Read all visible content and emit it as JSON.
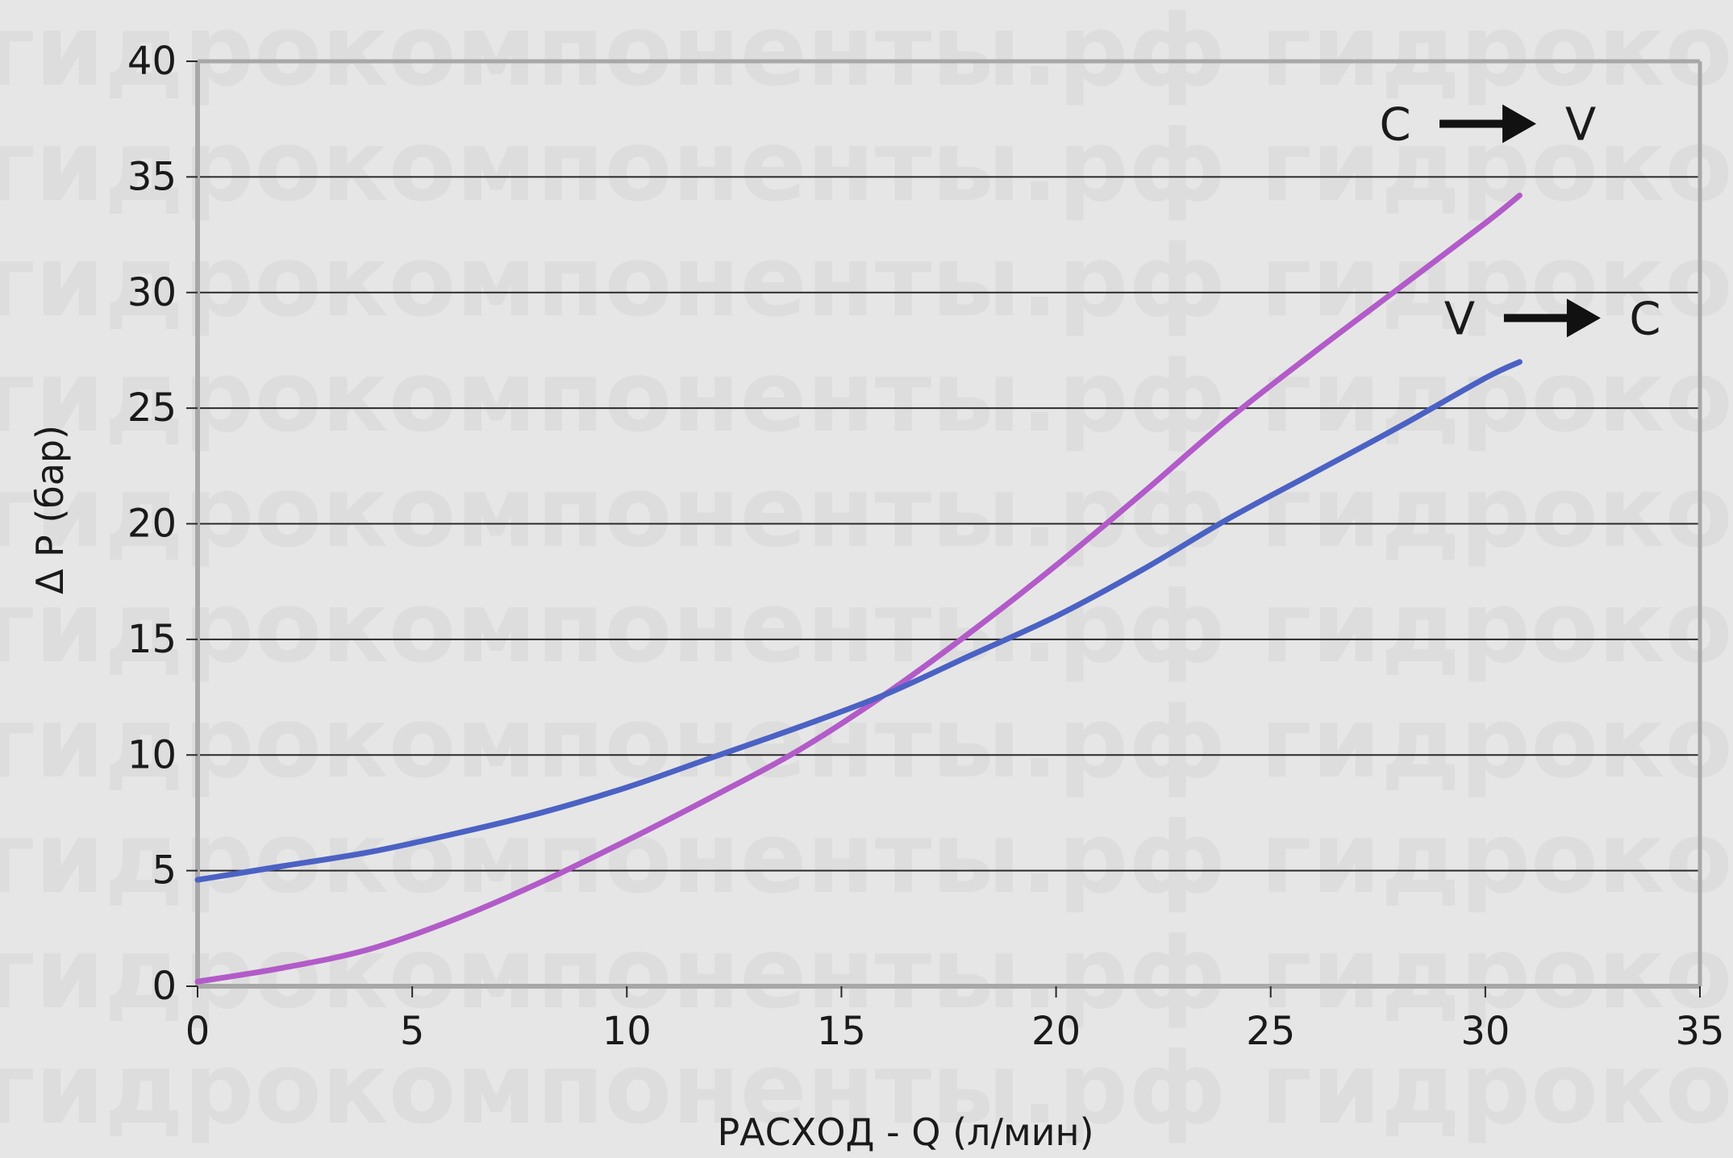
{
  "chart_data": {
    "type": "line",
    "xlabel": "РАСХОД - Q (л/мин)",
    "ylabel": "Δ P (бар)",
    "xlim": [
      0,
      35
    ],
    "ylim": [
      0,
      40
    ],
    "x_ticks": [
      0,
      5,
      10,
      15,
      20,
      25,
      30,
      35
    ],
    "y_ticks": [
      0,
      5,
      10,
      15,
      20,
      25,
      30,
      35,
      40
    ],
    "grid": "horizontal",
    "watermark": "гидрокомпоненты.рф",
    "series": [
      {
        "name": "C → V",
        "color": "#b25bc9",
        "x": [
          0,
          2,
          4,
          6,
          8,
          10,
          12,
          14,
          16,
          18,
          20,
          22,
          24,
          26,
          28,
          30,
          30.8
        ],
        "y": [
          0.2,
          0.8,
          1.6,
          2.9,
          4.5,
          6.3,
          8.2,
          10.2,
          12.6,
          15.3,
          18.2,
          21.3,
          24.5,
          27.4,
          30.2,
          33.0,
          34.2
        ]
      },
      {
        "name": "V → C",
        "color": "#4b62c4",
        "x": [
          0,
          2,
          4,
          6,
          8,
          10,
          12,
          14,
          16,
          18,
          20,
          22,
          24,
          26,
          28,
          30,
          30.8
        ],
        "y": [
          4.6,
          5.2,
          5.8,
          6.6,
          7.5,
          8.6,
          9.9,
          11.2,
          12.6,
          14.3,
          16.0,
          18.0,
          20.2,
          22.2,
          24.2,
          26.3,
          27.0
        ]
      }
    ],
    "annotations": [
      {
        "from": "C",
        "to": "V",
        "x": 27.9,
        "y": 36.6
      },
      {
        "from": "V",
        "to": "C",
        "x": 29.4,
        "y": 28.2
      }
    ]
  }
}
